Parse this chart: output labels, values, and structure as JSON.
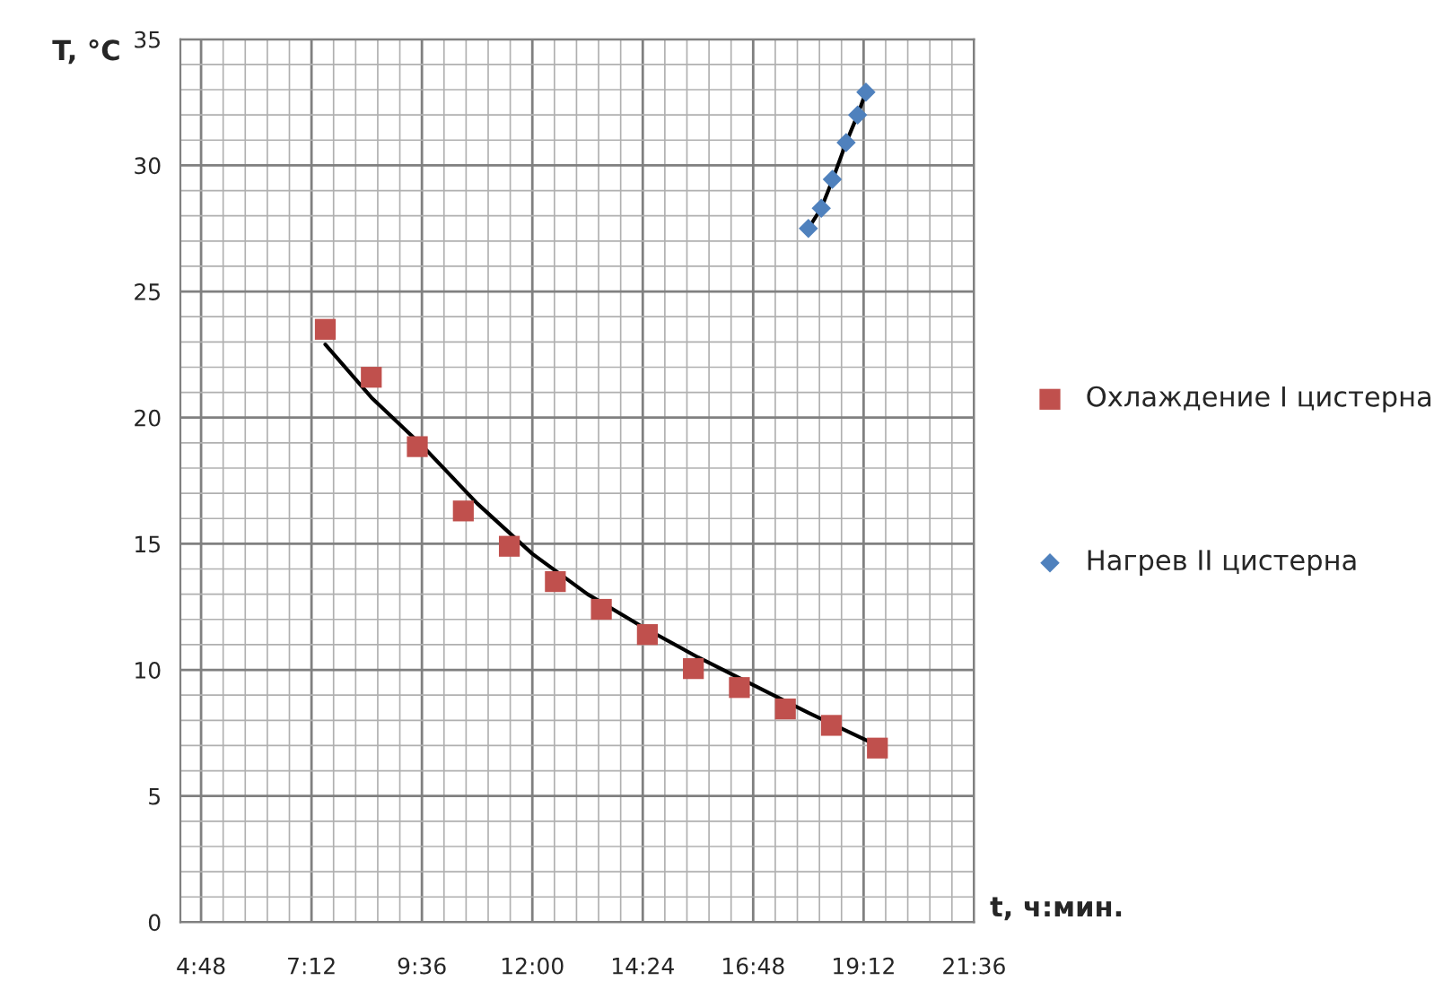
{
  "chart_data": {
    "type": "scatter",
    "xlabel": "t, ч:мин.",
    "ylabel": "T, °C",
    "xlim": [
      4.35,
      21.6
    ],
    "xticks": [
      {
        "value": 4.8,
        "label": "4:48"
      },
      {
        "value": 7.2,
        "label": "7:12"
      },
      {
        "value": 9.6,
        "label": "9:36"
      },
      {
        "value": 12,
        "label": "12:00"
      },
      {
        "value": 14.4,
        "label": "14:24"
      },
      {
        "value": 16.8,
        "label": "16:48"
      },
      {
        "value": 19.2,
        "label": "19:12"
      },
      {
        "value": 21.6,
        "label": "21:36"
      }
    ],
    "ylim": [
      0,
      35
    ],
    "yticks": [
      0,
      5,
      10,
      15,
      20,
      25,
      30,
      35
    ],
    "grid": true,
    "legend": "right",
    "series": [
      {
        "type": "line",
        "color": "#000000",
        "marker": "none",
        "line_style": "solid",
        "x": [
          7.5,
          8.5,
          9.6,
          10.8,
          12,
          13.2,
          14.4,
          15.6,
          16.8,
          18,
          19.5
        ],
        "values": [
          22.9,
          20.8,
          18.9,
          16.6,
          14.6,
          13.0,
          11.7,
          10.5,
          9.4,
          8.3,
          7.0
        ]
      },
      {
        "type": "line",
        "color": "#000000",
        "marker": "none",
        "line_style": "solid",
        "x": [
          18.0,
          18.28,
          18.52,
          18.82,
          19.07,
          19.25
        ],
        "values": [
          27.5,
          28.3,
          29.4,
          30.9,
          32.0,
          32.9
        ]
      },
      {
        "name": "Охлаждение I цистерна",
        "color": "#c0504d",
        "marker": "square",
        "x": [
          7.5,
          8.5,
          9.5,
          10.5,
          11.5,
          12.5,
          13.5,
          14.5,
          15.5,
          16.5,
          17.5,
          18.5,
          19.5
        ],
        "values": [
          23.5,
          21.6,
          18.85,
          16.3,
          14.9,
          13.5,
          12.4,
          11.4,
          10.05,
          9.3,
          8.45,
          7.8,
          6.9
        ]
      },
      {
        "name": "Нагрев II цистерна",
        "color": "#4f81bd",
        "marker": "diamond",
        "x": [
          18.0,
          18.28,
          18.52,
          18.82,
          19.07,
          19.25
        ],
        "values": [
          27.5,
          28.3,
          29.45,
          30.9,
          32.0,
          32.9
        ]
      }
    ]
  }
}
